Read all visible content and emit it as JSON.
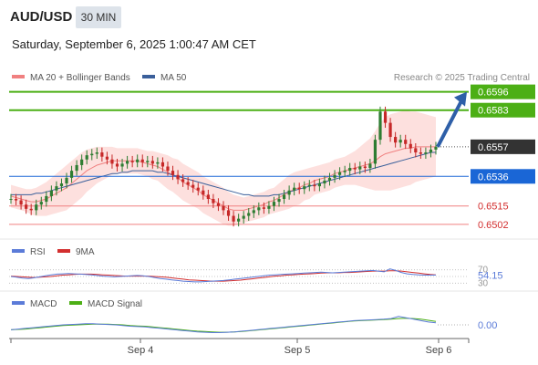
{
  "header": {
    "symbol": "AUD/USD",
    "timeframe": "30 MIN",
    "datetime": "Saturday, September 6, 2025 1:00:47 AM CET"
  },
  "legend": {
    "bb_label": "MA 20 + Bollinger Bands",
    "ma50_label": "MA 50",
    "credit": "Research © 2025 Trading Central"
  },
  "colors": {
    "bb_band": "#fddad8",
    "bb_line": "#f08080",
    "ma50": "#3a5f9a",
    "candle_up": "#2e7d32",
    "candle_down": "#c62828",
    "resistance": "#4caf15",
    "pivot": "#1a66d6",
    "support": "#f08080",
    "current": "#333333",
    "arrow": "#2e5fa8",
    "rsi": "#5b7bd8",
    "rsi_ma": "#d32f2f",
    "macd": "#5b7bd8",
    "macd_signal": "#4caf15"
  },
  "levels": [
    {
      "label": "0.6596",
      "kind": "resistance"
    },
    {
      "label": "0.6583",
      "kind": "resistance"
    },
    {
      "label": "0.6557",
      "kind": "current"
    },
    {
      "label": "0.6536",
      "kind": "pivot"
    },
    {
      "label": "0.6515",
      "kind": "support"
    },
    {
      "label": "0.6502",
      "kind": "support"
    }
  ],
  "rsi": {
    "label": "RSI",
    "ma_label": "9MA",
    "value": "54.15",
    "upper": "70",
    "lower": "30"
  },
  "macd": {
    "label": "MACD",
    "signal_label": "MACD Signal",
    "value": "0.00"
  },
  "x_axis": {
    "ticks": [
      "Sep 4",
      "Sep 5",
      "Sep 6"
    ]
  },
  "chart_data": {
    "type": "candlestick",
    "y_range": [
      0.6498,
      0.6599
    ],
    "closes": [
      0.652,
      0.6519,
      0.6516,
      0.6513,
      0.6512,
      0.6516,
      0.6518,
      0.6522,
      0.6526,
      0.6529,
      0.6531,
      0.6535,
      0.654,
      0.6544,
      0.6548,
      0.6551,
      0.6552,
      0.6553,
      0.655,
      0.6548,
      0.6545,
      0.6543,
      0.6545,
      0.6547,
      0.6546,
      0.6548,
      0.6546,
      0.6547,
      0.6545,
      0.6546,
      0.6543,
      0.654,
      0.6537,
      0.6534,
      0.6532,
      0.653,
      0.6528,
      0.6526,
      0.6523,
      0.652,
      0.6517,
      0.6515,
      0.6512,
      0.6508,
      0.6504,
      0.6506,
      0.6508,
      0.651,
      0.6512,
      0.6514,
      0.6513,
      0.6515,
      0.6518,
      0.652,
      0.6523,
      0.6526,
      0.6528,
      0.6527,
      0.6529,
      0.653,
      0.6529,
      0.6531,
      0.6533,
      0.6535,
      0.6537,
      0.6539,
      0.654,
      0.6542,
      0.6541,
      0.6543,
      0.6542,
      0.6545,
      0.6562,
      0.6582,
      0.6574,
      0.6564,
      0.656,
      0.6562,
      0.6559,
      0.6556,
      0.6553,
      0.6552,
      0.6553,
      0.6555,
      0.6557
    ],
    "ma20": [
      0.6522,
      0.6521,
      0.652,
      0.6519,
      0.6518,
      0.6518,
      0.6519,
      0.652,
      0.6522,
      0.6524,
      0.6526,
      0.6528,
      0.6531,
      0.6534,
      0.6537,
      0.654,
      0.6542,
      0.6544,
      0.6545,
      0.6546,
      0.6547,
      0.6547,
      0.6547,
      0.6547,
      0.6547,
      0.6547,
      0.6546,
      0.6545,
      0.6544,
      0.6543,
      0.6541,
      0.6539,
      0.6537,
      0.6535,
      0.6532,
      0.653,
      0.6528,
      0.6526,
      0.6523,
      0.6521,
      0.6519,
      0.6517,
      0.6515,
      0.6513,
      0.6512,
      0.6512,
      0.6512,
      0.6513,
      0.6514,
      0.6515,
      0.6516,
      0.6518,
      0.6519,
      0.6521,
      0.6523,
      0.6525,
      0.6527,
      0.6528,
      0.653,
      0.6531,
      0.6533,
      0.6534,
      0.6535,
      0.6536,
      0.6538,
      0.6539,
      0.654,
      0.6541,
      0.6542,
      0.6543,
      0.6544,
      0.6545,
      0.6547,
      0.655,
      0.6552,
      0.6553,
      0.6554,
      0.6555,
      0.6556,
      0.6556,
      0.6557,
      0.6557,
      0.6557,
      0.6557,
      0.6557
    ],
    "bb_width": [
      0.0008,
      0.0008,
      0.0008,
      0.0008,
      0.0009,
      0.001,
      0.0011,
      0.0012,
      0.0013,
      0.0014,
      0.0015,
      0.0016,
      0.0016,
      0.0016,
      0.0016,
      0.0015,
      0.0014,
      0.0013,
      0.0012,
      0.0011,
      0.001,
      0.0009,
      0.0009,
      0.0009,
      0.0009,
      0.0009,
      0.0009,
      0.0009,
      0.001,
      0.001,
      0.0011,
      0.0012,
      0.0012,
      0.0013,
      0.0013,
      0.0013,
      0.0013,
      0.0013,
      0.0013,
      0.0013,
      0.0013,
      0.0013,
      0.0013,
      0.0012,
      0.0011,
      0.001,
      0.0009,
      0.0009,
      0.0009,
      0.0009,
      0.0009,
      0.0009,
      0.0009,
      0.001,
      0.0011,
      0.0012,
      0.0012,
      0.0012,
      0.0011,
      0.0011,
      0.001,
      0.001,
      0.001,
      0.001,
      0.001,
      0.001,
      0.001,
      0.0011,
      0.0012,
      0.0014,
      0.0016,
      0.0018,
      0.0021,
      0.0024,
      0.0026,
      0.0027,
      0.0027,
      0.0027,
      0.0027,
      0.0026,
      0.0025,
      0.0024,
      0.0023,
      0.0022,
      0.0021
    ],
    "ma50": [
      0.6523,
      0.6523,
      0.6523,
      0.6523,
      0.6523,
      0.6524,
      0.6524,
      0.6525,
      0.6526,
      0.6527,
      0.6528,
      0.6529,
      0.653,
      0.6531,
      0.6532,
      0.6533,
      0.6534,
      0.6535,
      0.6536,
      0.6537,
      0.6538,
      0.6538,
      0.6539,
      0.6539,
      0.654,
      0.654,
      0.654,
      0.654,
      0.654,
      0.6539,
      0.6539,
      0.6538,
      0.6537,
      0.6536,
      0.6535,
      0.6534,
      0.6533,
      0.6532,
      0.6531,
      0.653,
      0.6529,
      0.6528,
      0.6527,
      0.6526,
      0.6525,
      0.6524,
      0.6523,
      0.6523,
      0.6522,
      0.6522,
      0.6522,
      0.6522,
      0.6523,
      0.6523,
      0.6524,
      0.6525,
      0.6526,
      0.6527,
      0.6528,
      0.6529,
      0.653,
      0.6531,
      0.6532,
      0.6533,
      0.6534,
      0.6535,
      0.6536,
      0.6537,
      0.6538,
      0.6539,
      0.654,
      0.6541,
      0.6542,
      0.6543,
      0.6544,
      0.6545,
      0.6546,
      0.6547,
      0.6548,
      0.6549,
      0.655,
      0.6551,
      0.6552,
      0.6553,
      0.6553
    ],
    "rsi_series": [
      50,
      48,
      45,
      44,
      46,
      49,
      52,
      55,
      57,
      58,
      59,
      58,
      57,
      56,
      55,
      53,
      51,
      50,
      49,
      50,
      51,
      52,
      53,
      52,
      50,
      47,
      44,
      42,
      40,
      38,
      36,
      35,
      34,
      34,
      35,
      36,
      37,
      38,
      40,
      42,
      44,
      46,
      48,
      50,
      52,
      54,
      55,
      56,
      57,
      58,
      59,
      60,
      61,
      62,
      63,
      62,
      61,
      62,
      63,
      64,
      65,
      66,
      67,
      68,
      66,
      64,
      73,
      68,
      62,
      58,
      56,
      55,
      54,
      54,
      54
    ],
    "rsi_ma_series": [
      51,
      50,
      49,
      48,
      47,
      48,
      49,
      50,
      52,
      54,
      55,
      56,
      57,
      57,
      57,
      56,
      55,
      54,
      53,
      52,
      51,
      51,
      51,
      51,
      51,
      50,
      49,
      48,
      46,
      44,
      42,
      40,
      39,
      38,
      37,
      36,
      36,
      36,
      37,
      38,
      39,
      41,
      43,
      45,
      47,
      49,
      51,
      52,
      54,
      55,
      56,
      57,
      58,
      59,
      60,
      61,
      61,
      61,
      62,
      62,
      63,
      64,
      65,
      66,
      66,
      66,
      67,
      67,
      66,
      64,
      62,
      60,
      58,
      56,
      55
    ],
    "macd_series": [
      0.0,
      0.1,
      0.2,
      0.3,
      0.4,
      0.5,
      0.6,
      0.7,
      0.75,
      0.8,
      0.85,
      0.85,
      0.8,
      0.75,
      0.7,
      0.6,
      0.5,
      0.45,
      0.4,
      0.3,
      0.2,
      0.1,
      0.0,
      -0.1,
      -0.2,
      -0.3,
      -0.35,
      -0.4,
      -0.4,
      -0.35,
      -0.3,
      -0.2,
      -0.1,
      0.0,
      0.1,
      0.2,
      0.3,
      0.4,
      0.5,
      0.6,
      0.7,
      0.8,
      0.9,
      1.0,
      1.1,
      1.2,
      1.3,
      1.35,
      1.4,
      1.45,
      1.5,
      1.6,
      1.9,
      1.7,
      1.5,
      1.3,
      1.1,
      1.0
    ],
    "macd_signal_series": [
      0.0,
      0.05,
      0.1,
      0.2,
      0.3,
      0.4,
      0.5,
      0.6,
      0.65,
      0.7,
      0.75,
      0.8,
      0.8,
      0.8,
      0.75,
      0.7,
      0.6,
      0.55,
      0.5,
      0.4,
      0.3,
      0.2,
      0.1,
      0.0,
      -0.1,
      -0.2,
      -0.25,
      -0.3,
      -0.35,
      -0.35,
      -0.3,
      -0.25,
      -0.15,
      -0.05,
      0.05,
      0.15,
      0.25,
      0.35,
      0.45,
      0.55,
      0.65,
      0.75,
      0.85,
      0.95,
      1.05,
      1.15,
      1.25,
      1.3,
      1.35,
      1.4,
      1.45,
      1.5,
      1.6,
      1.65,
      1.6,
      1.5,
      1.35,
      1.2
    ]
  }
}
